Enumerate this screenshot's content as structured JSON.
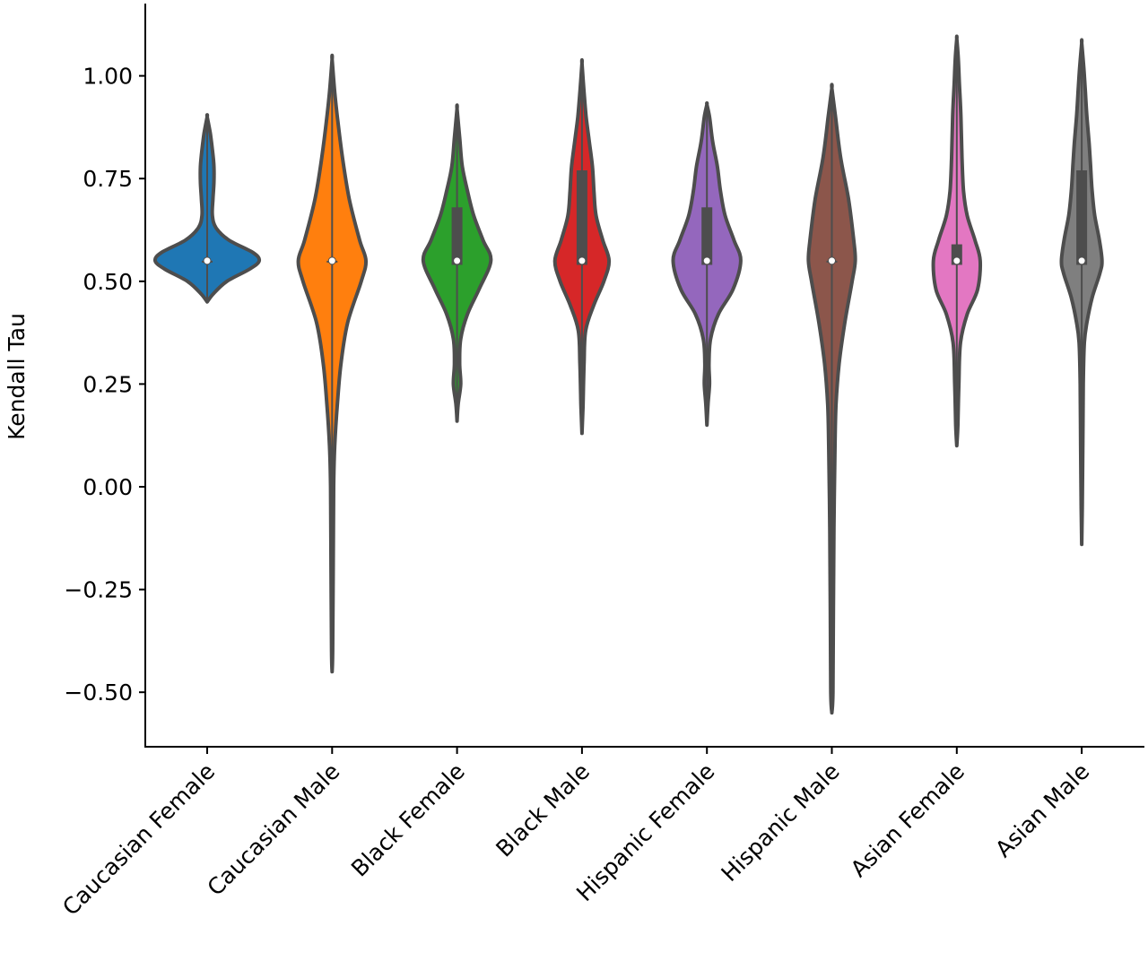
{
  "chart_data": {
    "type": "violin",
    "title": "",
    "xlabel": "",
    "ylabel": "Kendall Tau",
    "ylim": [
      -0.6,
      1.17
    ],
    "yticks": [
      -0.5,
      -0.25,
      0.0,
      0.25,
      0.5,
      0.75,
      1.0
    ],
    "ytick_labels": [
      "−0.50",
      "−0.25",
      "0.00",
      "0.25",
      "0.50",
      "0.75",
      "1.00"
    ],
    "grid": false,
    "categories": [
      "Caucasian Female",
      "Caucasian Male",
      "Black Female",
      "Black Male",
      "Hispanic Female",
      "Hispanic Male",
      "Asian Female",
      "Asian Male"
    ],
    "series": [
      {
        "category": "Caucasian Female",
        "color": "#1f77b4",
        "min": 0.45,
        "max": 0.9,
        "q1": 0.55,
        "median": 0.55,
        "q3": 0.55,
        "profile": [
          [
            0.45,
            0.0
          ],
          [
            0.47,
            0.12
          ],
          [
            0.5,
            0.38
          ],
          [
            0.53,
            0.82
          ],
          [
            0.55,
            1.0
          ],
          [
            0.57,
            0.88
          ],
          [
            0.6,
            0.42
          ],
          [
            0.63,
            0.17
          ],
          [
            0.66,
            0.1
          ],
          [
            0.7,
            0.11
          ],
          [
            0.74,
            0.13
          ],
          [
            0.78,
            0.13
          ],
          [
            0.82,
            0.1
          ],
          [
            0.86,
            0.06
          ],
          [
            0.9,
            0.0
          ]
        ]
      },
      {
        "category": "Caucasian Male",
        "color": "#ff7f0e",
        "min": -0.45,
        "max": 1.04,
        "q1": 0.55,
        "median": 0.55,
        "q3": 0.55,
        "profile": [
          [
            -0.45,
            0.0
          ],
          [
            -0.4,
            0.01
          ],
          [
            -0.2,
            0.02
          ],
          [
            0.0,
            0.03
          ],
          [
            0.1,
            0.05
          ],
          [
            0.2,
            0.1
          ],
          [
            0.3,
            0.17
          ],
          [
            0.4,
            0.3
          ],
          [
            0.5,
            0.56
          ],
          [
            0.55,
            0.65
          ],
          [
            0.6,
            0.53
          ],
          [
            0.7,
            0.33
          ],
          [
            0.8,
            0.2
          ],
          [
            0.9,
            0.1
          ],
          [
            0.96,
            0.05
          ],
          [
            1.04,
            0.0
          ]
        ]
      },
      {
        "category": "Black Female",
        "color": "#2ca02c",
        "min": 0.16,
        "max": 0.92,
        "q1": 0.54,
        "median": 0.55,
        "q3": 0.68,
        "profile": [
          [
            0.16,
            0.0
          ],
          [
            0.2,
            0.02
          ],
          [
            0.25,
            0.07
          ],
          [
            0.3,
            0.05
          ],
          [
            0.36,
            0.07
          ],
          [
            0.42,
            0.2
          ],
          [
            0.48,
            0.42
          ],
          [
            0.55,
            0.65
          ],
          [
            0.6,
            0.5
          ],
          [
            0.66,
            0.32
          ],
          [
            0.72,
            0.2
          ],
          [
            0.78,
            0.1
          ],
          [
            0.85,
            0.05
          ],
          [
            0.92,
            0.0
          ]
        ]
      },
      {
        "category": "Black Male",
        "color": "#d62728",
        "min": 0.13,
        "max": 1.03,
        "q1": 0.54,
        "median": 0.55,
        "q3": 0.77,
        "profile": [
          [
            0.13,
            0.0
          ],
          [
            0.2,
            0.02
          ],
          [
            0.3,
            0.04
          ],
          [
            0.38,
            0.07
          ],
          [
            0.44,
            0.22
          ],
          [
            0.5,
            0.42
          ],
          [
            0.55,
            0.52
          ],
          [
            0.6,
            0.4
          ],
          [
            0.66,
            0.27
          ],
          [
            0.72,
            0.23
          ],
          [
            0.78,
            0.2
          ],
          [
            0.84,
            0.14
          ],
          [
            0.9,
            0.08
          ],
          [
            0.96,
            0.04
          ],
          [
            1.03,
            0.0
          ]
        ]
      },
      {
        "category": "Hispanic Female",
        "color": "#9467bd",
        "min": 0.15,
        "max": 0.93,
        "q1": 0.54,
        "median": 0.55,
        "q3": 0.68,
        "profile": [
          [
            0.15,
            0.0
          ],
          [
            0.2,
            0.02
          ],
          [
            0.25,
            0.05
          ],
          [
            0.3,
            0.04
          ],
          [
            0.36,
            0.07
          ],
          [
            0.42,
            0.22
          ],
          [
            0.48,
            0.5
          ],
          [
            0.55,
            0.65
          ],
          [
            0.6,
            0.52
          ],
          [
            0.66,
            0.35
          ],
          [
            0.72,
            0.26
          ],
          [
            0.78,
            0.2
          ],
          [
            0.84,
            0.11
          ],
          [
            0.9,
            0.05
          ],
          [
            0.93,
            0.0
          ]
        ]
      },
      {
        "category": "Hispanic Male",
        "color": "#8c564b",
        "min": -0.55,
        "max": 0.97,
        "q1": 0.55,
        "median": 0.55,
        "q3": 0.55,
        "profile": [
          [
            -0.55,
            0.0
          ],
          [
            -0.5,
            0.02
          ],
          [
            -0.3,
            0.03
          ],
          [
            -0.1,
            0.04
          ],
          [
            0.1,
            0.06
          ],
          [
            0.2,
            0.08
          ],
          [
            0.3,
            0.14
          ],
          [
            0.4,
            0.25
          ],
          [
            0.5,
            0.39
          ],
          [
            0.55,
            0.45
          ],
          [
            0.6,
            0.42
          ],
          [
            0.7,
            0.32
          ],
          [
            0.8,
            0.17
          ],
          [
            0.9,
            0.07
          ],
          [
            0.97,
            0.0
          ]
        ]
      },
      {
        "category": "Asian Female",
        "color": "#e377c2",
        "min": 0.1,
        "max": 1.09,
        "q1": 0.54,
        "median": 0.55,
        "q3": 0.59,
        "profile": [
          [
            0.1,
            0.0
          ],
          [
            0.15,
            0.02
          ],
          [
            0.25,
            0.04
          ],
          [
            0.35,
            0.07
          ],
          [
            0.42,
            0.2
          ],
          [
            0.48,
            0.4
          ],
          [
            0.55,
            0.45
          ],
          [
            0.6,
            0.35
          ],
          [
            0.66,
            0.2
          ],
          [
            0.72,
            0.13
          ],
          [
            0.8,
            0.1
          ],
          [
            0.9,
            0.08
          ],
          [
            0.98,
            0.05
          ],
          [
            1.04,
            0.03
          ],
          [
            1.09,
            0.0
          ]
        ]
      },
      {
        "category": "Asian Male",
        "color": "#7f7f7f",
        "min": -0.14,
        "max": 1.08,
        "q1": 0.54,
        "median": 0.55,
        "q3": 0.77,
        "profile": [
          [
            -0.14,
            0.0
          ],
          [
            -0.05,
            0.01
          ],
          [
            0.1,
            0.02
          ],
          [
            0.25,
            0.03
          ],
          [
            0.35,
            0.05
          ],
          [
            0.4,
            0.1
          ],
          [
            0.46,
            0.2
          ],
          [
            0.52,
            0.35
          ],
          [
            0.55,
            0.39
          ],
          [
            0.6,
            0.34
          ],
          [
            0.66,
            0.25
          ],
          [
            0.72,
            0.2
          ],
          [
            0.78,
            0.17
          ],
          [
            0.84,
            0.14
          ],
          [
            0.9,
            0.1
          ],
          [
            0.96,
            0.07
          ],
          [
            1.02,
            0.04
          ],
          [
            1.08,
            0.0
          ]
        ]
      }
    ]
  }
}
